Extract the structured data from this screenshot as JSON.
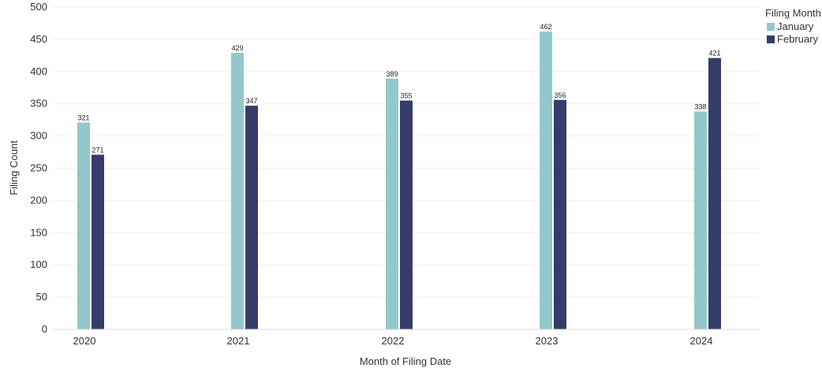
{
  "chart_data": {
    "type": "bar",
    "categories": [
      "2020",
      "2021",
      "2022",
      "2023",
      "2024"
    ],
    "series": [
      {
        "name": "January",
        "values": [
          321,
          429,
          389,
          462,
          338
        ],
        "color": "#92c8cb"
      },
      {
        "name": "February",
        "values": [
          271,
          347,
          355,
          356,
          421
        ],
        "color": "#353c6b"
      }
    ],
    "xlabel": "Month of Filing Date",
    "ylabel": "Filing Count",
    "ylim": [
      0,
      500
    ],
    "yticks": [
      0,
      50,
      100,
      150,
      200,
      250,
      300,
      350,
      400,
      450,
      500
    ],
    "grid": true,
    "legend": {
      "title": "Filing Month",
      "position": "top-right"
    },
    "data_labels": true
  }
}
